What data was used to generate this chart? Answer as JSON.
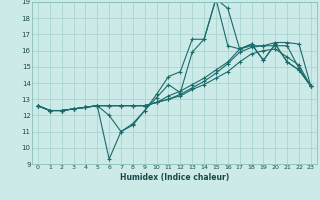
{
  "xlabel": "Humidex (Indice chaleur)",
  "bg_color": "#cceae8",
  "grid_color": "#aad4d0",
  "line_color": "#1a6b6b",
  "xlim": [
    -0.5,
    23.5
  ],
  "ylim": [
    9,
    19
  ],
  "xticks": [
    0,
    1,
    2,
    3,
    4,
    5,
    6,
    7,
    8,
    9,
    10,
    11,
    12,
    13,
    14,
    15,
    16,
    17,
    18,
    19,
    20,
    21,
    22,
    23
  ],
  "yticks": [
    9,
    10,
    11,
    12,
    13,
    14,
    15,
    16,
    17,
    18,
    19
  ],
  "series": [
    [
      12.6,
      12.3,
      12.3,
      12.4,
      12.5,
      12.6,
      12.0,
      11.0,
      11.4,
      12.3,
      13.3,
      14.4,
      14.7,
      16.7,
      16.7,
      19.2,
      18.6,
      16.1,
      16.4,
      15.4,
      16.4,
      15.3,
      14.8,
      13.8
    ],
    [
      12.6,
      12.3,
      12.3,
      12.4,
      12.5,
      12.6,
      12.6,
      12.6,
      12.6,
      12.6,
      12.8,
      13.2,
      13.5,
      13.9,
      14.3,
      14.8,
      15.3,
      16.1,
      16.3,
      16.3,
      16.3,
      16.3,
      14.9,
      13.8
    ],
    [
      12.6,
      12.3,
      12.3,
      12.4,
      12.5,
      12.6,
      12.6,
      12.6,
      12.6,
      12.6,
      12.8,
      13.0,
      13.3,
      13.7,
      14.1,
      14.6,
      15.2,
      15.9,
      16.2,
      16.3,
      16.5,
      16.5,
      16.4,
      13.8
    ],
    [
      12.6,
      12.3,
      12.3,
      12.4,
      12.5,
      12.6,
      9.3,
      11.0,
      11.5,
      12.3,
      13.1,
      13.9,
      13.4,
      15.9,
      16.7,
      19.2,
      16.3,
      16.1,
      16.4,
      15.4,
      16.4,
      15.3,
      14.8,
      13.8
    ],
    [
      12.6,
      12.3,
      12.3,
      12.4,
      12.5,
      12.6,
      12.6,
      12.6,
      12.6,
      12.6,
      12.8,
      13.0,
      13.2,
      13.6,
      13.9,
      14.3,
      14.7,
      15.3,
      15.8,
      16.0,
      16.1,
      15.6,
      15.1,
      13.8
    ]
  ]
}
